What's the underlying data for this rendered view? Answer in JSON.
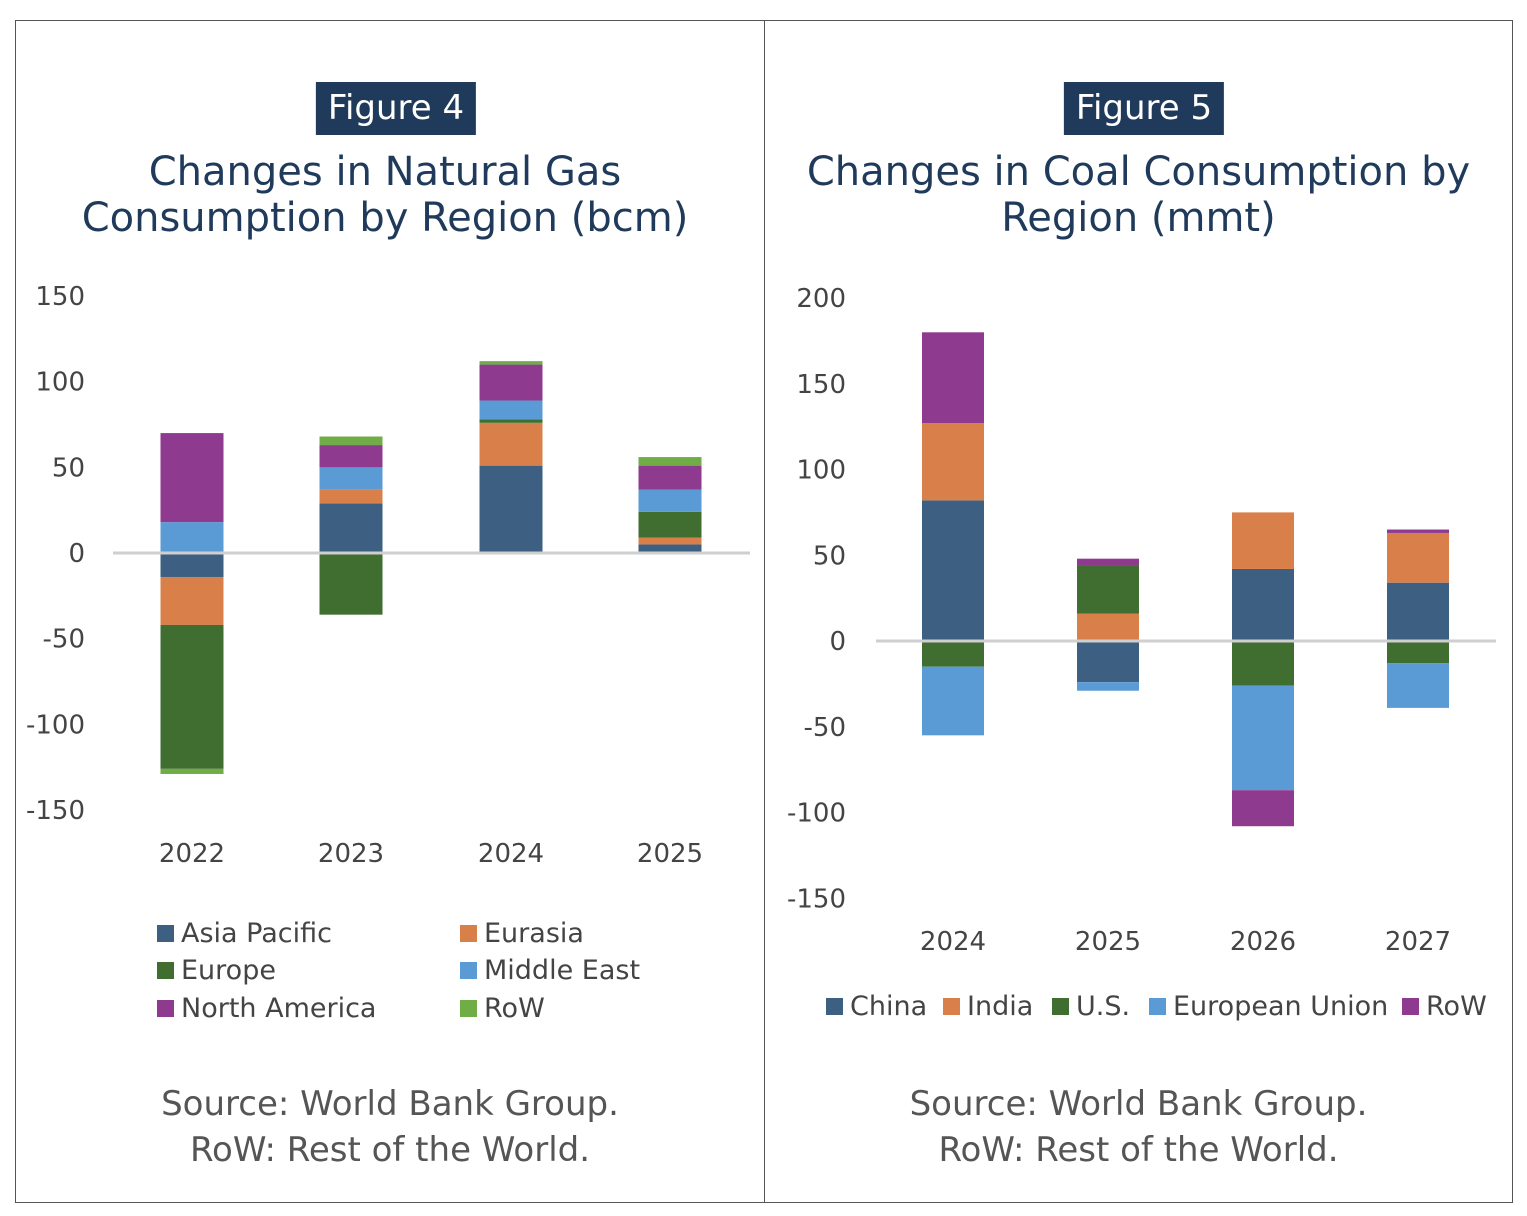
{
  "figures": [
    {
      "badge": "Figure 4",
      "title_lines": [
        "Changes in Natural Gas",
        "Consumption by Region (bcm)"
      ],
      "source_lines": [
        "Source: World Bank Group.",
        "RoW: Rest of the World."
      ]
    },
    {
      "badge": "Figure 5",
      "title_lines": [
        "Changes in Coal Consumption by",
        "Region (mmt)"
      ],
      "source_lines": [
        "Source: World Bank Group.",
        "RoW: Rest of the World."
      ]
    }
  ],
  "chart_data": [
    {
      "type": "bar",
      "stacked": true,
      "title": "Changes in Natural Gas Consumption by Region (bcm)",
      "categories": [
        "2022",
        "2023",
        "2024",
        "2025"
      ],
      "ylim": [
        -150,
        150
      ],
      "yticks": [
        150,
        100,
        50,
        0,
        -50,
        -100,
        -150
      ],
      "grid": false,
      "legend": "bottom",
      "series": [
        {
          "name": "Asia Pacific",
          "color": "#3d5f82",
          "values": [
            -14,
            29,
            51,
            5
          ]
        },
        {
          "name": "Eurasia",
          "color": "#d9804a",
          "values": [
            -28,
            8,
            25,
            4
          ]
        },
        {
          "name": "Europe",
          "color": "#3f6e30",
          "values": [
            -84,
            -36,
            2,
            15
          ]
        },
        {
          "name": "Middle East",
          "color": "#5b9bd5",
          "values": [
            18,
            13,
            11,
            13
          ]
        },
        {
          "name": "North America",
          "color": "#8e3a8f",
          "values": [
            52,
            13,
            21,
            14
          ]
        },
        {
          "name": "RoW",
          "color": "#70ad47",
          "values": [
            -3,
            5,
            2,
            5
          ]
        }
      ]
    },
    {
      "type": "bar",
      "stacked": true,
      "title": "Changes in Coal Consumption by Region (mmt)",
      "categories": [
        "2024",
        "2025",
        "2026",
        "2027"
      ],
      "ylim": [
        -150,
        200
      ],
      "yticks": [
        200,
        150,
        100,
        50,
        0,
        -50,
        -100,
        -150
      ],
      "grid": false,
      "legend": "bottom",
      "series": [
        {
          "name": "China",
          "color": "#3d5f82",
          "values": [
            82,
            -24,
            42,
            34
          ]
        },
        {
          "name": "India",
          "color": "#d9804a",
          "values": [
            45,
            16,
            33,
            29
          ]
        },
        {
          "name": "U.S.",
          "color": "#3f6e30",
          "values": [
            -15,
            28,
            -26,
            -13
          ]
        },
        {
          "name": "European Union",
          "color": "#5b9bd5",
          "values": [
            -40,
            -5,
            -61,
            -26
          ]
        },
        {
          "name": "RoW",
          "color": "#8e3a8f",
          "values": [
            53,
            4,
            -21,
            2
          ]
        }
      ]
    }
  ]
}
